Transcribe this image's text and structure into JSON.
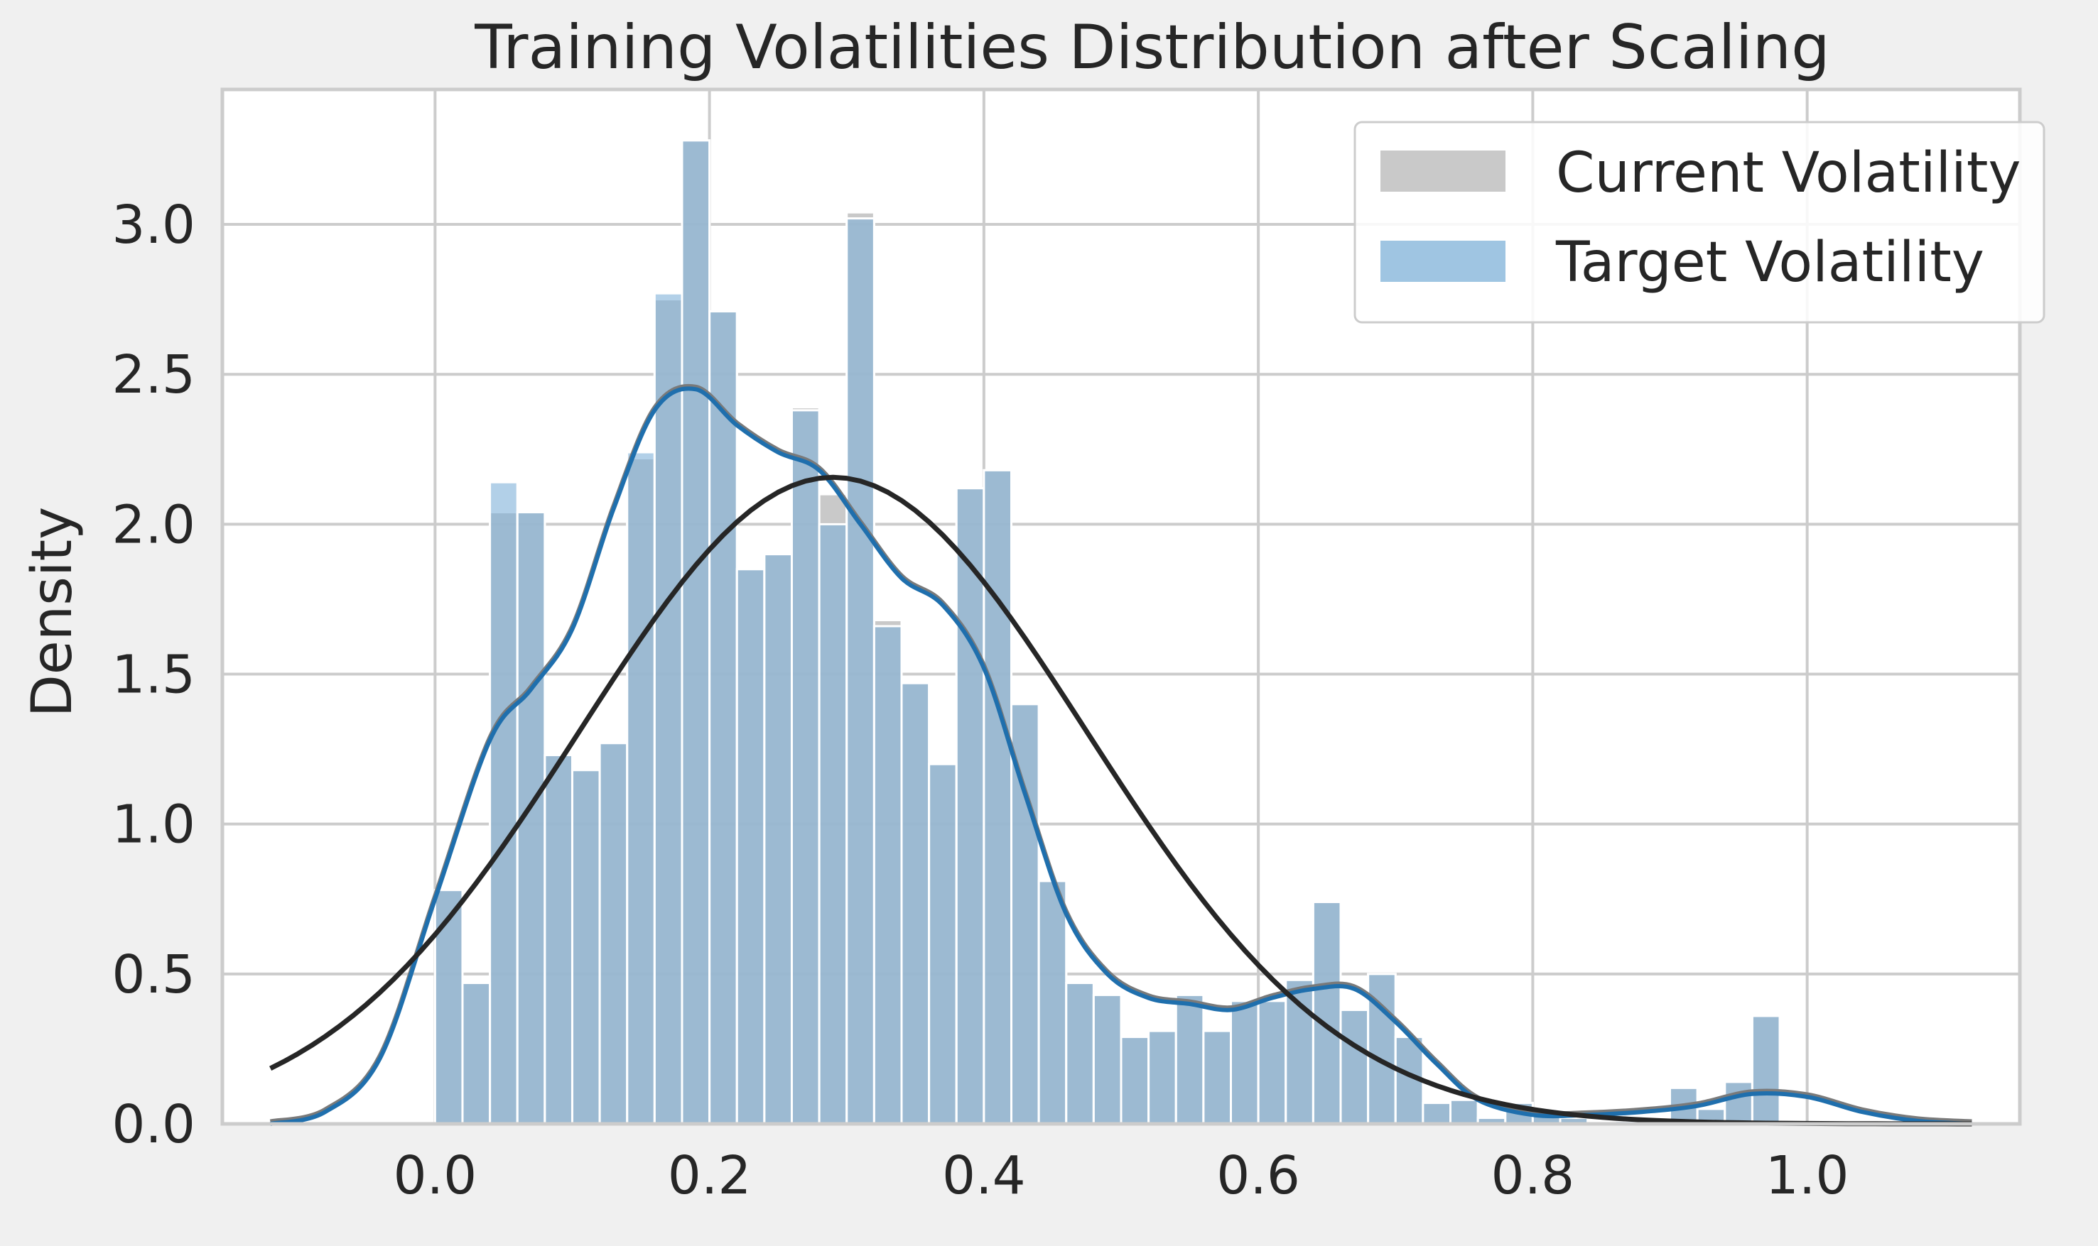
{
  "chart_data": {
    "type": "bar",
    "title": "Training Volatilities Distribution after Scaling",
    "xlabel": "",
    "ylabel": "Density",
    "xlim": [
      -0.155,
      1.155
    ],
    "ylim": [
      0,
      3.45
    ],
    "xticks": [
      0.0,
      0.2,
      0.4,
      0.6,
      0.8,
      1.0
    ],
    "xtick_labels": [
      "0.0",
      "0.2",
      "0.4",
      "0.6",
      "0.8",
      "1.0"
    ],
    "yticks": [
      0.0,
      0.5,
      1.0,
      1.5,
      2.0,
      2.5,
      3.0
    ],
    "ytick_labels": [
      "0.0",
      "0.5",
      "1.0",
      "1.5",
      "2.0",
      "2.5",
      "3.0"
    ],
    "grid": true,
    "legend_position": "upper-right",
    "bin_start": 0.0,
    "bin_width": 0.02,
    "series": [
      {
        "name": "Current Volatility",
        "color": "#c0c0c0",
        "values": [
          0.78,
          0.47,
          2.04,
          2.04,
          1.23,
          1.18,
          1.27,
          2.22,
          2.75,
          3.28,
          2.71,
          1.85,
          1.9,
          2.39,
          2.1,
          3.04,
          1.68,
          1.47,
          1.2,
          2.12,
          2.18,
          1.4,
          0.81,
          0.47,
          0.43,
          0.29,
          0.31,
          0.43,
          0.31,
          0.41,
          0.41,
          0.48,
          0.74,
          0.38,
          0.5,
          0.29,
          0.07,
          0.08,
          0.02,
          0.07,
          0.03,
          0.02,
          0.0,
          0.01,
          0.0,
          0.12,
          0.05,
          0.14,
          0.36
        ]
      },
      {
        "name": "Target Volatility",
        "color": "#7fb1d8",
        "values": [
          0.78,
          0.47,
          2.14,
          2.04,
          1.23,
          1.18,
          1.27,
          2.24,
          2.77,
          3.28,
          2.71,
          1.85,
          1.9,
          2.38,
          2.0,
          3.02,
          1.66,
          1.47,
          1.2,
          2.12,
          2.18,
          1.4,
          0.81,
          0.47,
          0.43,
          0.29,
          0.31,
          0.43,
          0.31,
          0.41,
          0.41,
          0.48,
          0.74,
          0.38,
          0.5,
          0.29,
          0.07,
          0.08,
          0.02,
          0.07,
          0.03,
          0.02,
          0.0,
          0.01,
          0.0,
          0.12,
          0.05,
          0.14,
          0.36
        ]
      }
    ],
    "kde": {
      "color": "#1f6fad",
      "x": [
        -0.12,
        -0.08,
        -0.04,
        0.0,
        0.04,
        0.07,
        0.1,
        0.13,
        0.16,
        0.19,
        0.22,
        0.25,
        0.28,
        0.31,
        0.34,
        0.37,
        0.4,
        0.43,
        0.46,
        0.49,
        0.52,
        0.55,
        0.58,
        0.61,
        0.64,
        0.67,
        0.7,
        0.73,
        0.76,
        0.8,
        0.84,
        0.88,
        0.92,
        0.96,
        1.0,
        1.04,
        1.08,
        1.12
      ],
      "y": [
        0.0,
        0.04,
        0.22,
        0.75,
        1.28,
        1.45,
        1.65,
        2.05,
        2.38,
        2.45,
        2.33,
        2.24,
        2.18,
        2.0,
        1.82,
        1.73,
        1.52,
        1.1,
        0.7,
        0.5,
        0.42,
        0.4,
        0.38,
        0.42,
        0.45,
        0.45,
        0.34,
        0.2,
        0.08,
        0.03,
        0.03,
        0.04,
        0.06,
        0.1,
        0.09,
        0.04,
        0.01,
        0.0
      ]
    },
    "normal_fit": {
      "color": "#262626",
      "mean": 0.29,
      "std": 0.185
    }
  }
}
